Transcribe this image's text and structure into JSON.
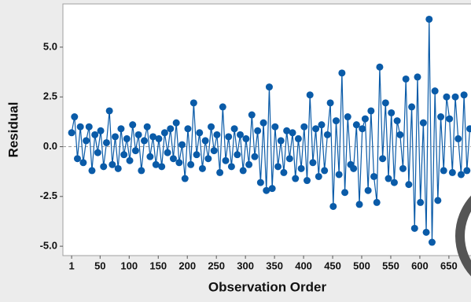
{
  "chart_data": {
    "type": "line",
    "x_label": "Observation Order",
    "y_label": "Residual",
    "x": [
      1,
      6,
      11,
      16,
      21,
      26,
      31,
      36,
      41,
      46,
      51,
      56,
      61,
      66,
      71,
      76,
      81,
      86,
      91,
      96,
      101,
      106,
      111,
      116,
      121,
      126,
      131,
      136,
      141,
      146,
      151,
      156,
      161,
      166,
      171,
      176,
      181,
      186,
      191,
      196,
      201,
      206,
      211,
      216,
      221,
      226,
      231,
      236,
      241,
      246,
      251,
      256,
      261,
      266,
      271,
      276,
      281,
      286,
      291,
      296,
      301,
      306,
      311,
      316,
      321,
      326,
      331,
      336,
      341,
      346,
      351,
      356,
      361,
      366,
      371,
      376,
      381,
      386,
      391,
      396,
      401,
      406,
      411,
      416,
      421,
      426,
      431,
      436,
      441,
      446,
      451,
      456,
      461,
      466,
      471,
      476,
      481,
      486,
      491,
      496,
      501,
      506,
      511,
      516,
      521,
      526,
      531,
      536,
      541,
      546,
      551,
      556,
      561,
      566,
      571,
      576,
      581,
      586,
      591,
      596,
      601,
      606,
      611,
      616,
      621,
      626,
      631,
      636,
      641,
      646,
      651,
      656,
      661,
      666,
      671,
      676,
      681,
      686
    ],
    "series": [
      {
        "name": "Residual",
        "color": "#0a5ba8",
        "values": [
          0.7,
          1.5,
          -0.6,
          1.0,
          -0.8,
          0.3,
          1.0,
          -1.2,
          0.6,
          -0.3,
          0.8,
          -1.0,
          0.2,
          1.8,
          -0.9,
          0.5,
          -1.1,
          0.9,
          -0.4,
          0.4,
          -0.7,
          1.1,
          -0.2,
          0.6,
          -1.2,
          0.3,
          1.0,
          -0.5,
          0.5,
          -0.9,
          0.4,
          -1.0,
          0.7,
          -0.3,
          0.9,
          -0.6,
          1.2,
          -0.8,
          0.1,
          -1.6,
          0.9,
          -0.9,
          2.2,
          -0.4,
          0.7,
          -1.1,
          0.3,
          -0.6,
          1.0,
          -0.2,
          0.6,
          -1.3,
          2.0,
          -0.7,
          0.5,
          -1.0,
          0.9,
          -0.4,
          0.6,
          -1.2,
          0.4,
          -0.9,
          1.6,
          -0.5,
          0.8,
          -1.8,
          1.2,
          -2.2,
          3.0,
          -2.1,
          1.0,
          -1.0,
          0.3,
          -1.3,
          0.8,
          -0.6,
          0.7,
          -1.6,
          0.4,
          -1.1,
          1.0,
          -1.7,
          2.6,
          -0.8,
          0.9,
          -1.5,
          1.1,
          -1.2,
          0.6,
          2.2,
          -3.0,
          1.3,
          -1.4,
          3.7,
          -2.3,
          1.5,
          -0.9,
          -1.1,
          1.1,
          -2.9,
          0.9,
          1.4,
          -2.2,
          1.8,
          -1.5,
          -2.8,
          4.0,
          -0.6,
          2.2,
          -1.6,
          1.7,
          -1.8,
          1.3,
          0.6,
          -1.1,
          3.4,
          -1.9,
          2.0,
          -4.1,
          3.5,
          -2.8,
          1.2,
          -4.3,
          6.4,
          -4.8,
          2.8,
          -2.7,
          1.5,
          -1.2,
          2.5,
          1.4,
          -1.3,
          2.5,
          0.4,
          -1.4,
          2.6,
          -1.2,
          0.9
        ]
      }
    ],
    "xlim": [
      -14,
      688
    ],
    "ylim": [
      -5.47,
      7.17
    ],
    "xticks": [
      1,
      50,
      100,
      150,
      200,
      250,
      300,
      350,
      400,
      450,
      500,
      550,
      600,
      650
    ],
    "yticks": [
      {
        "value": 5,
        "label": "5.0"
      },
      {
        "value": 2.5,
        "label": "2.5"
      },
      {
        "value": 0,
        "label": "0.0"
      },
      {
        "value": -2.5,
        "label": "-2.5"
      },
      {
        "value": -5,
        "label": "-5.0"
      }
    ],
    "reference_line": 0
  }
}
